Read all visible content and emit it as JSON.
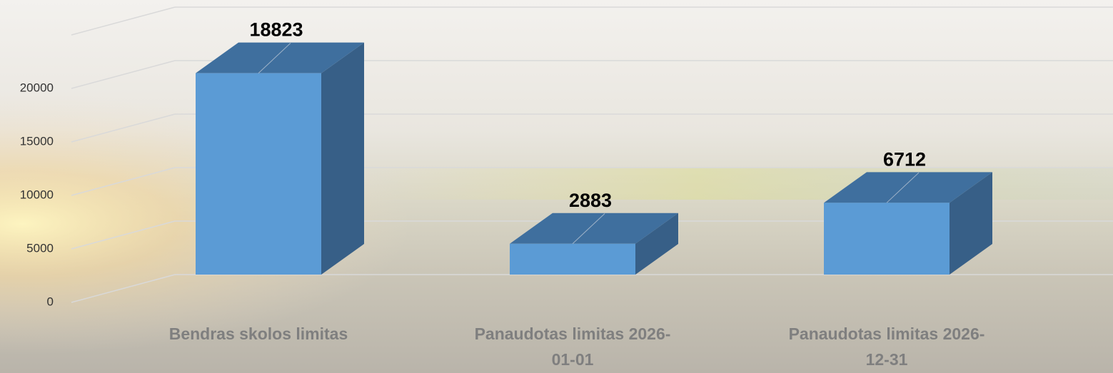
{
  "chart_data": {
    "type": "bar3d",
    "categories": [
      "Bendras skolos limitas",
      "Panaudotas limitas 2026-01-01",
      "Panaudotas limitas 2026-12-31"
    ],
    "values": [
      18823,
      2883,
      6712
    ],
    "color": "#5b9bd5",
    "ylim": [
      0,
      25000
    ],
    "yticks": [
      0,
      5000,
      10000,
      15000,
      20000
    ],
    "grid": true
  }
}
